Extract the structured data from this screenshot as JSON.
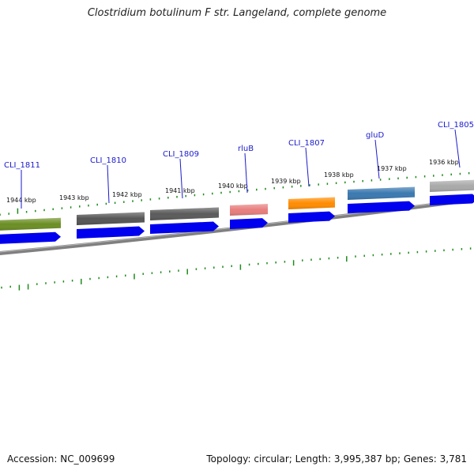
{
  "title": "Clostridium botulinum F str. Langeland, complete genome",
  "footer": {
    "accession": "Accession: NC_009699",
    "topology": "Topology: circular; Length: 3,995,387 bp; Genes: 3,781"
  },
  "kbp_labels": [
    {
      "text": "1944 kbp"
    },
    {
      "text": "1943 kbp"
    },
    {
      "text": "1942 kbp"
    },
    {
      "text": "1941 kbp"
    },
    {
      "text": "1940 kbp"
    },
    {
      "text": "1939 kbp"
    },
    {
      "text": "1938 kbp"
    },
    {
      "text": "1937 kbp"
    },
    {
      "text": "1936 kbp"
    }
  ],
  "genes": [
    {
      "name": "CLI_1811",
      "color": "#6b8e23"
    },
    {
      "name": "CLI_1810",
      "color": "#555555"
    },
    {
      "name": "CLI_1809",
      "color": "#5a5a5a"
    },
    {
      "name": "rluB",
      "color": "#e87e7e"
    },
    {
      "name": "CLI_1807",
      "color": "#ff8c00"
    },
    {
      "name": "gluD",
      "color": "#3a78b0"
    },
    {
      "name": "CLI_1805",
      "color": "#a9a9a9"
    }
  ],
  "colors": {
    "cds": "#0000ee",
    "tick": "#1e8b1e",
    "backbone": "#808080",
    "label": "#1a1acc"
  }
}
